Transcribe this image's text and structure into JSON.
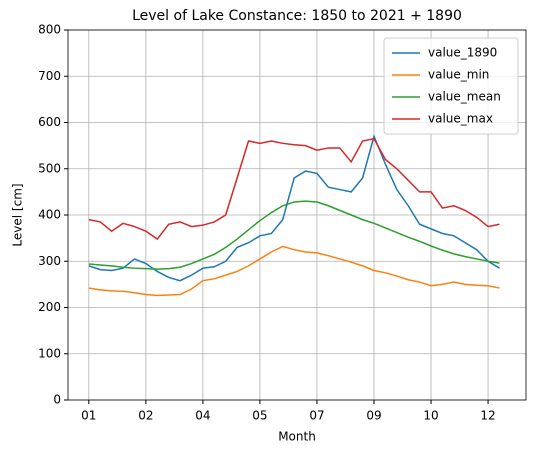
{
  "chart_data": {
    "type": "line",
    "title": "Level of Lake Constance: 1850 to 2021 + 1890",
    "xlabel": "Month",
    "ylabel": "Level [cm]",
    "x": [
      0,
      10,
      20,
      30,
      40,
      50,
      60,
      70,
      80,
      90,
      100,
      110,
      120,
      130,
      140,
      150,
      160,
      170,
      180,
      190,
      200,
      210,
      220,
      230,
      240,
      250,
      260,
      270,
      280,
      290,
      300,
      310,
      320,
      330,
      340,
      350,
      360
    ],
    "series": [
      {
        "name": "value_1890",
        "color": "#1f77b4",
        "values": [
          290,
          282,
          280,
          285,
          305,
          295,
          278,
          265,
          258,
          270,
          285,
          288,
          300,
          330,
          340,
          355,
          360,
          390,
          480,
          495,
          490,
          460,
          455,
          450,
          480,
          570,
          510,
          455,
          420,
          380,
          370,
          360,
          355,
          340,
          325,
          300,
          285
        ]
      },
      {
        "name": "value_min",
        "color": "#ff7f0e",
        "values": [
          242,
          238,
          236,
          235,
          232,
          228,
          226,
          227,
          228,
          240,
          258,
          262,
          270,
          278,
          290,
          305,
          320,
          332,
          325,
          320,
          318,
          312,
          305,
          298,
          290,
          280,
          275,
          268,
          260,
          255,
          247,
          250,
          255,
          250,
          248,
          247,
          242
        ]
      },
      {
        "name": "value_mean",
        "color": "#2ca02c",
        "values": [
          294,
          292,
          290,
          287,
          285,
          284,
          283,
          284,
          287,
          295,
          305,
          315,
          330,
          348,
          368,
          388,
          405,
          420,
          428,
          430,
          428,
          420,
          410,
          400,
          390,
          382,
          372,
          362,
          352,
          343,
          333,
          324,
          316,
          310,
          305,
          300,
          296
        ]
      },
      {
        "name": "value_max",
        "color": "#d62728",
        "values": [
          390,
          385,
          365,
          382,
          375,
          365,
          348,
          380,
          385,
          375,
          378,
          385,
          400,
          480,
          560,
          555,
          560,
          555,
          552,
          550,
          540,
          545,
          545,
          515,
          560,
          565,
          520,
          500,
          475,
          450,
          450,
          415,
          420,
          410,
          395,
          375,
          380
        ]
      }
    ],
    "xlim": [
      -18.25,
      383.25
    ],
    "xticks": [
      {
        "value": 0,
        "label": "01"
      },
      {
        "value": 50,
        "label": "02"
      },
      {
        "value": 100,
        "label": "04"
      },
      {
        "value": 150,
        "label": "05"
      },
      {
        "value": 200,
        "label": "07"
      },
      {
        "value": 250,
        "label": "09"
      },
      {
        "value": 300,
        "label": "10"
      },
      {
        "value": 350,
        "label": "12"
      }
    ],
    "ylim": [
      0,
      800
    ],
    "yticks": [
      0,
      100,
      200,
      300,
      400,
      500,
      600,
      700,
      800
    ],
    "grid": true,
    "legend": "upper right"
  }
}
